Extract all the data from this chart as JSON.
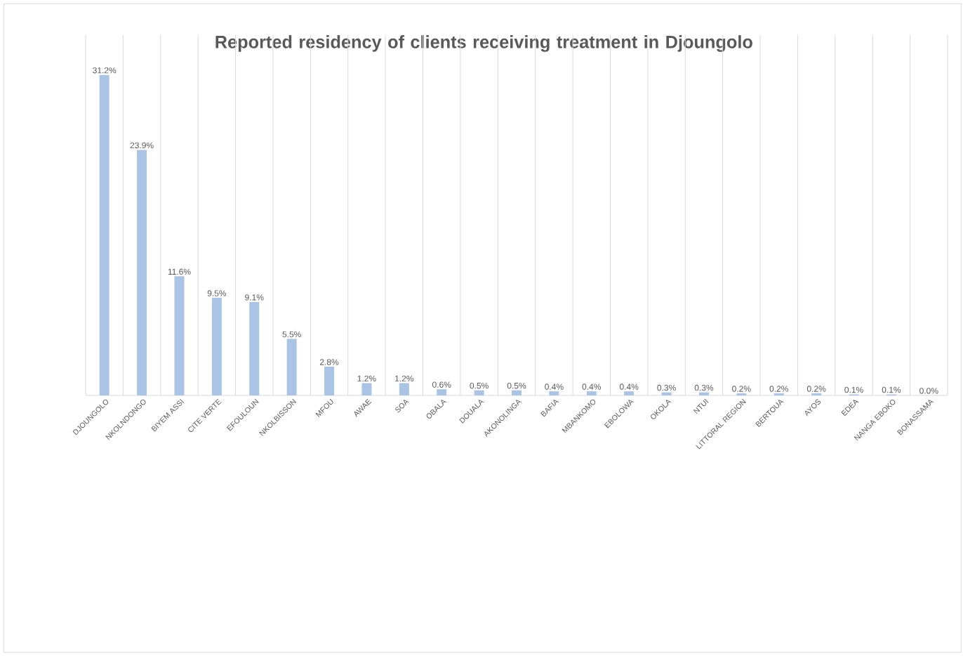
{
  "chart_data": {
    "type": "bar",
    "title": "Reported residency of clients receiving treatment in Djoungolo",
    "categories": [
      "DJOUNGOLO",
      "NKOLNDONGO",
      "BIYEM ASSI",
      "CITE VERTE",
      "EFOULOUN",
      "NKOLBISSON",
      "MFOU",
      "AWAE",
      "SOA",
      "OBALA",
      "DOUALA",
      "AKONOLINGA",
      "BAFIA",
      "MBANKOMO",
      "EBOLOWA",
      "OKOLA",
      "NTUI",
      "LITTORAL REGION",
      "BERTOUA",
      "AYOS",
      "EDEA",
      "NANGA EBOKO",
      "BONASSAMA"
    ],
    "values": [
      31.2,
      23.9,
      11.6,
      9.5,
      9.1,
      5.5,
      2.8,
      1.2,
      1.2,
      0.6,
      0.5,
      0.5,
      0.4,
      0.4,
      0.4,
      0.3,
      0.3,
      0.2,
      0.2,
      0.2,
      0.1,
      0.1,
      0.0
    ],
    "value_labels": [
      "31.2%",
      "23.9%",
      "11.6%",
      "9.5%",
      "9.1%",
      "5.5%",
      "2.8%",
      "1.2%",
      "1.2%",
      "0.6%",
      "0.5%",
      "0.5%",
      "0.4%",
      "0.4%",
      "0.4%",
      "0.3%",
      "0.3%",
      "0.2%",
      "0.2%",
      "0.2%",
      "0.1%",
      "0.1%",
      "0.0%"
    ],
    "color": "#a9c4e4",
    "grid": "x"
  }
}
